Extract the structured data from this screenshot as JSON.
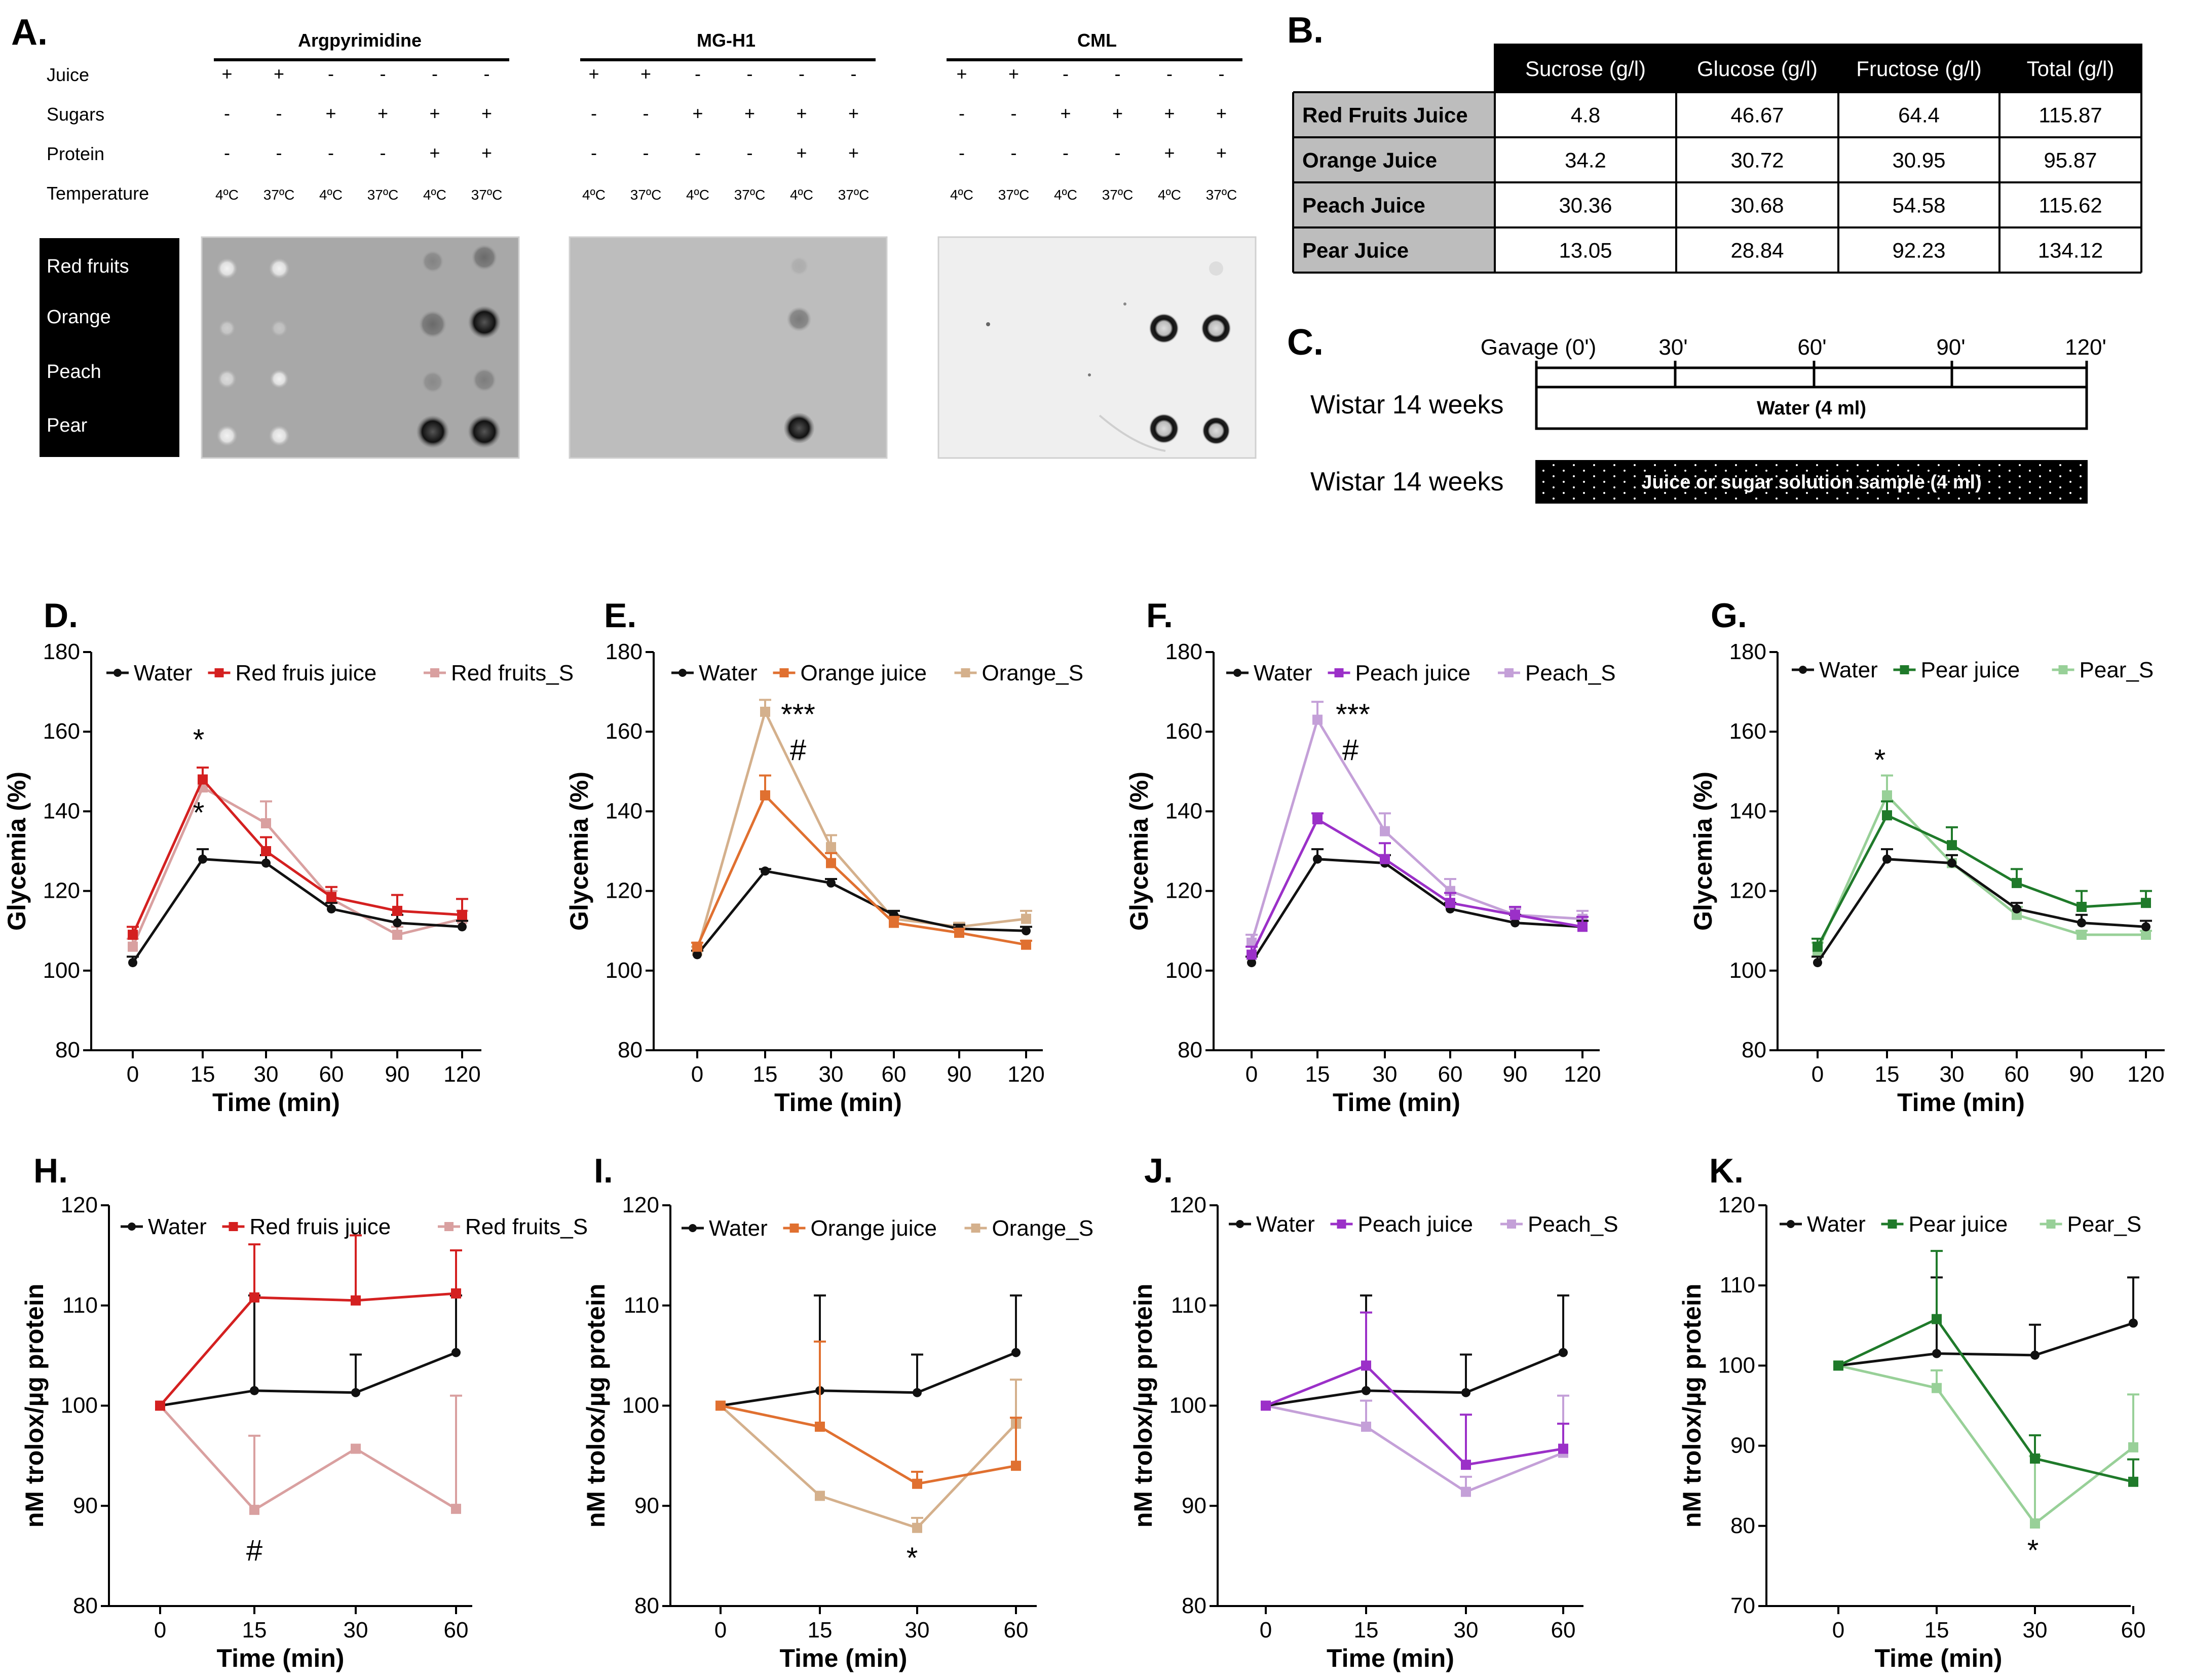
{
  "panel_letters": {
    "A": "A.",
    "B": "B.",
    "C": "C.",
    "D": "D.",
    "E": "E.",
    "F": "F.",
    "G": "G.",
    "H": "H.",
    "I": "I.",
    "J": "J.",
    "K": "K."
  },
  "blots": {
    "row_labels": [
      "Juice",
      "Sugars",
      "Protein",
      "Temperature"
    ],
    "sample_labels": [
      "Red fruits",
      "Orange",
      "Peach",
      "Pear"
    ],
    "juice": [
      "+",
      "+",
      "-",
      "-",
      "-",
      "-"
    ],
    "sugars": [
      "-",
      "-",
      "+",
      "+",
      "+",
      "+"
    ],
    "protein": [
      "-",
      "-",
      "-",
      "-",
      "+",
      "+"
    ],
    "temperature": [
      "4ºC",
      "37ºC",
      "4ºC",
      "37ºC",
      "4ºC",
      "37ºC"
    ],
    "panels": [
      {
        "title": "Argpyrimidine"
      },
      {
        "title": "MG-H1"
      },
      {
        "title": "CML"
      }
    ]
  },
  "table": {
    "headers": [
      "",
      "Sucrose (g/l)",
      "Glucose (g/l)",
      "Fructose (g/l)",
      "Total (g/l)"
    ],
    "rows": [
      [
        "Red Fruits Juice",
        "4.8",
        "46.67",
        "64.4",
        "115.87"
      ],
      [
        "Orange Juice",
        "34.2",
        "30.72",
        "30.95",
        "95.87"
      ],
      [
        "Peach Juice",
        "30.36",
        "30.68",
        "54.58",
        "115.62"
      ],
      [
        "Pear Juice",
        "13.05",
        "28.84",
        "92.23",
        "134.12"
      ]
    ]
  },
  "protocol": {
    "ticks": [
      "Gavage (0')",
      "30'",
      "60'",
      "90'",
      "120'"
    ],
    "row1_label": "Wistar 14 weeks",
    "row1_bar": "Water (4 ml)",
    "row2_label": "Wistar 14 weeks",
    "row2_bar": "Juice or sugar solution sample (4 ml)"
  },
  "colors": {
    "water": "#111111",
    "red": "#d42020",
    "red_s": "#d9a0a0",
    "orange": "#e07030",
    "orange_s": "#d4b08c",
    "peach": "#9b30c8",
    "peach_s": "#c4a0d8",
    "pear": "#1f7a2a",
    "pear_s": "#98d098"
  },
  "chart_data": [
    {
      "id": "D",
      "type": "line",
      "xlabel": "Time (min)",
      "ylabel": "Glycemia (%)",
      "categories": [
        "0",
        "15",
        "30",
        "60",
        "90",
        "120"
      ],
      "ylim": [
        80,
        180
      ],
      "yticks": [
        80,
        100,
        120,
        140,
        160,
        180
      ],
      "series": [
        {
          "name": "Water",
          "color": "#111111",
          "values": [
            102,
            128,
            127,
            115.5,
            112,
            111
          ],
          "err": [
            1.5,
            2.5,
            2,
            1.5,
            2,
            1.5
          ]
        },
        {
          "name": "Red fruis juice",
          "color": "#d42020",
          "values": [
            109,
            148,
            130,
            118.5,
            115,
            114
          ],
          "err": [
            2,
            3,
            3.5,
            2.5,
            4,
            4
          ]
        },
        {
          "name": "Red fruits_S",
          "color": "#d9a0a0",
          "values": [
            106,
            146,
            137,
            118,
            109,
            113
          ],
          "err": [
            2,
            5,
            5.5,
            2,
            2,
            2
          ]
        }
      ],
      "annotations": [
        "*",
        "*"
      ]
    },
    {
      "id": "E",
      "type": "line",
      "xlabel": "Time (min)",
      "ylabel": "Glycemia (%)",
      "categories": [
        "0",
        "15",
        "30",
        "60",
        "90",
        "120"
      ],
      "ylim": [
        80,
        180
      ],
      "yticks": [
        80,
        100,
        120,
        140,
        160,
        180
      ],
      "series": [
        {
          "name": "Water",
          "color": "#111111",
          "values": [
            104,
            125,
            122,
            114,
            110.5,
            110
          ],
          "err": [
            1,
            0.5,
            1,
            1,
            1,
            1
          ]
        },
        {
          "name": "Orange juice",
          "color": "#e07030",
          "values": [
            106,
            144,
            127,
            112,
            109.5,
            106.5
          ],
          "err": [
            1,
            5,
            2.5,
            1.5,
            1,
            1
          ]
        },
        {
          "name": "Orange_S",
          "color": "#d4b08c",
          "values": [
            105,
            165,
            131,
            113,
            111,
            113
          ],
          "err": [
            1,
            3,
            3,
            2,
            1,
            2
          ]
        }
      ],
      "annotations": [
        "***",
        "#"
      ]
    },
    {
      "id": "F",
      "type": "line",
      "xlabel": "Time (min)",
      "ylabel": "Glycemia (%)",
      "categories": [
        "0",
        "15",
        "30",
        "60",
        "90",
        "120"
      ],
      "ylim": [
        80,
        180
      ],
      "yticks": [
        80,
        100,
        120,
        140,
        160,
        180
      ],
      "series": [
        {
          "name": "Water",
          "color": "#111111",
          "values": [
            102,
            128,
            127,
            115.5,
            112,
            111
          ],
          "err": [
            1.5,
            2.5,
            2,
            1.5,
            2,
            1.5
          ]
        },
        {
          "name": "Peach juice",
          "color": "#9b30c8",
          "values": [
            104,
            138,
            128,
            117,
            114,
            111
          ],
          "err": [
            2,
            1.5,
            4,
            2.5,
            2,
            2.5
          ]
        },
        {
          "name": "Peach_S",
          "color": "#c4a0d8",
          "values": [
            107,
            163,
            135,
            120,
            114,
            113
          ],
          "err": [
            2,
            4.5,
            4.5,
            3,
            1.5,
            2
          ]
        }
      ],
      "annotations": [
        "***",
        "#"
      ]
    },
    {
      "id": "G",
      "type": "line",
      "xlabel": "Time (min)",
      "ylabel": "Glycemia (%)",
      "categories": [
        "0",
        "15",
        "30",
        "60",
        "90",
        "120"
      ],
      "ylim": [
        80,
        180
      ],
      "yticks": [
        80,
        100,
        120,
        140,
        160,
        180
      ],
      "series": [
        {
          "name": "Water",
          "color": "#111111",
          "values": [
            102,
            128,
            127,
            115.5,
            112,
            111
          ],
          "err": [
            1.5,
            2.5,
            2,
            1.5,
            2,
            1.5
          ]
        },
        {
          "name": "Pear juice",
          "color": "#1f7a2a",
          "values": [
            106,
            139,
            131.5,
            122,
            116,
            117
          ],
          "err": [
            2,
            3.5,
            4.5,
            3.5,
            4,
            3
          ]
        },
        {
          "name": "Pear_S",
          "color": "#98d098",
          "values": [
            105,
            144,
            127,
            114,
            109,
            109
          ],
          "err": [
            2,
            5,
            2,
            2,
            1,
            1
          ]
        }
      ],
      "annotations": [
        "*"
      ]
    },
    {
      "id": "H",
      "type": "line",
      "xlabel": "Time (min)",
      "ylabel": "nM trolox/µg protein",
      "categories": [
        "0",
        "15",
        "30",
        "60"
      ],
      "ylim": [
        80,
        120
      ],
      "yticks": [
        80,
        90,
        100,
        110,
        120
      ],
      "series": [
        {
          "name": "Water",
          "color": "#111111",
          "values": [
            100,
            101.5,
            101.3,
            105.3
          ],
          "err": [
            0,
            9.5,
            3.8,
            5.7
          ]
        },
        {
          "name": "Red fruis juice",
          "color": "#d42020",
          "values": [
            100,
            110.8,
            110.5,
            111.2
          ],
          "err": [
            0,
            5.3,
            6.5,
            4.3
          ]
        },
        {
          "name": "Red fruits_S",
          "color": "#d9a0a0",
          "values": [
            100,
            89.6,
            95.7,
            89.7
          ],
          "err": [
            0,
            7.4,
            0,
            11.3
          ]
        }
      ],
      "annotations": [
        "#"
      ]
    },
    {
      "id": "I",
      "type": "line",
      "xlabel": "Time (min)",
      "ylabel": "nM trolox/µg protein",
      "categories": [
        "0",
        "15",
        "30",
        "60"
      ],
      "ylim": [
        80,
        120
      ],
      "yticks": [
        80,
        90,
        100,
        110,
        120
      ],
      "series": [
        {
          "name": "Water",
          "color": "#111111",
          "values": [
            100,
            101.5,
            101.3,
            105.3
          ],
          "err": [
            0,
            9.5,
            3.8,
            5.7
          ]
        },
        {
          "name": "Orange juice",
          "color": "#e07030",
          "values": [
            100,
            97.9,
            92.2,
            94
          ],
          "err": [
            0,
            8.5,
            1.2,
            4.8
          ]
        },
        {
          "name": "Orange_S",
          "color": "#d4b08c",
          "values": [
            100,
            91,
            87.8,
            98.2
          ],
          "err": [
            0,
            0,
            1,
            4.4
          ]
        }
      ],
      "annotations": [
        "*"
      ]
    },
    {
      "id": "J",
      "type": "line",
      "xlabel": "Time (min)",
      "ylabel": "nM trolox/µg protein",
      "categories": [
        "0",
        "15",
        "30",
        "60"
      ],
      "ylim": [
        80,
        120
      ],
      "yticks": [
        80,
        90,
        100,
        110,
        120
      ],
      "series": [
        {
          "name": "Water",
          "color": "#111111",
          "values": [
            100,
            101.5,
            101.3,
            105.3
          ],
          "err": [
            0,
            9.5,
            3.8,
            5.7
          ]
        },
        {
          "name": "Peach juice",
          "color": "#9b30c8",
          "values": [
            100,
            104,
            94.1,
            95.7
          ],
          "err": [
            0,
            5.3,
            5,
            2.5
          ]
        },
        {
          "name": "Peach_S",
          "color": "#c4a0d8",
          "values": [
            100,
            97.9,
            91.4,
            95.3
          ],
          "err": [
            0,
            2.6,
            1.5,
            5.7
          ]
        }
      ],
      "annotations": []
    },
    {
      "id": "K",
      "type": "line",
      "xlabel": "Time (min)",
      "ylabel": "nM trolox/µg protein",
      "categories": [
        "0",
        "15",
        "30",
        "60"
      ],
      "ylim": [
        70,
        120
      ],
      "yticks": [
        70,
        80,
        90,
        100,
        110,
        120
      ],
      "series": [
        {
          "name": "Water",
          "color": "#111111",
          "values": [
            100,
            101.5,
            101.3,
            105.3
          ],
          "err": [
            0,
            9.5,
            3.8,
            5.7
          ]
        },
        {
          "name": "Pear juice",
          "color": "#1f7a2a",
          "values": [
            100,
            105.8,
            88.4,
            85.5
          ],
          "err": [
            0,
            8.5,
            2.9,
            2.8
          ]
        },
        {
          "name": "Pear_S",
          "color": "#98d098",
          "values": [
            100,
            97.2,
            80.3,
            89.8
          ],
          "err": [
            0,
            2.2,
            8.4,
            6.6
          ]
        }
      ],
      "annotations": [
        "*"
      ]
    }
  ]
}
